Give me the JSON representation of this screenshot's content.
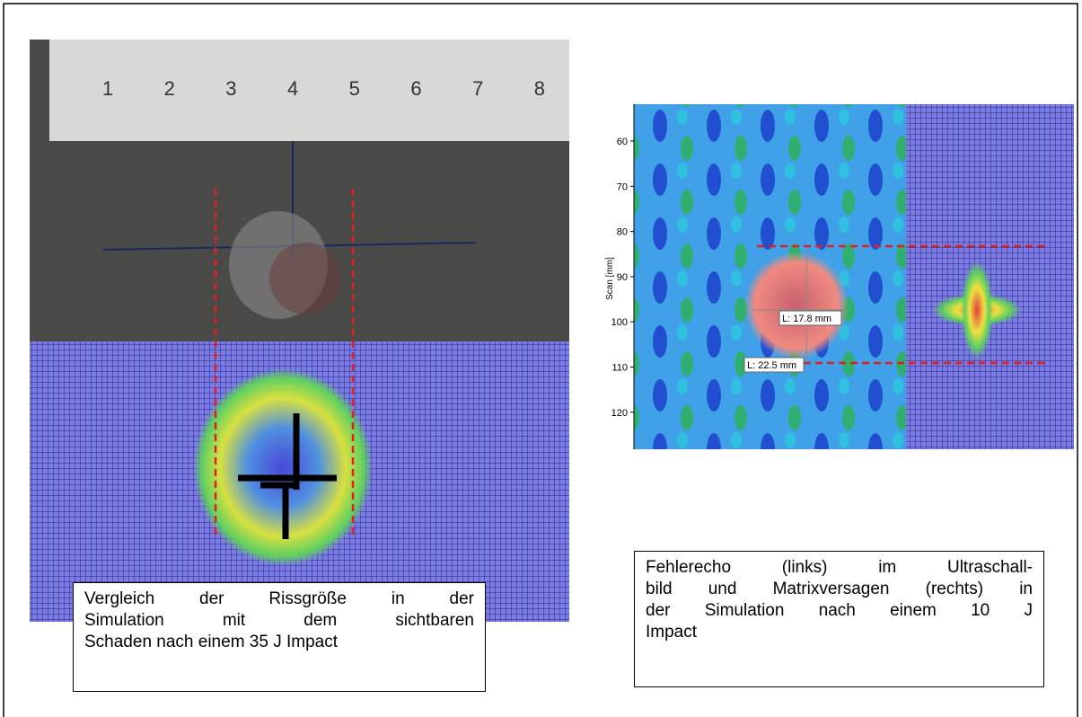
{
  "left_figure": {
    "ruler_labels": [
      1,
      2,
      3,
      4,
      5,
      6,
      7,
      8
    ],
    "caption_lines": [
      "Vergleich der Rissgröße in der",
      "Simulation mit dem sichtbaren",
      "Schaden nach einem 35 J Impact"
    ]
  },
  "right_figure": {
    "axis_label": "Scan [mm]",
    "axis_ticks": [
      60,
      70,
      80,
      90,
      100,
      110,
      120
    ],
    "measurements": [
      "L: 17.8 mm",
      "L: 22.5 mm"
    ],
    "caption_lines": [
      "Fehlerecho (links) im Ultraschall-",
      "bild und Matrixversagen (rechts) in",
      "der Simulation nach einem 10 J",
      "Impact"
    ]
  }
}
